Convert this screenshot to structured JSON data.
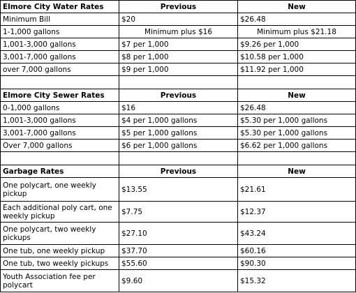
{
  "sections": [
    {
      "title": "Elmore City Water Rates",
      "columns": [
        "Previous",
        "New"
      ],
      "rows": [
        [
          "Minimum Bill",
          "$20",
          "$26.48"
        ],
        [
          "1-1,000 gallons",
          "Minimum plus $16",
          "Minimum plus $21.18"
        ],
        [
          "1,001-3,000 gallons",
          "$7 per 1,000",
          "$9.26 per 1,000"
        ],
        [
          "3,001-7,000 gallons",
          "$8 per 1,000",
          "$10.58 per 1,000"
        ],
        [
          "over 7,000 gallons",
          "$9 per 1,000",
          "$11.92 per 1,000"
        ]
      ]
    },
    {
      "title": "Elmore City Sewer Rates",
      "columns": [
        "Previous",
        "New"
      ],
      "rows": [
        [
          "0-1,000 gallons",
          "$16",
          "$26.48"
        ],
        [
          "1,001-3,000 gallons",
          "$4 per 1,000 gallons",
          "$5.30 per 1,000 gallons"
        ],
        [
          "3,001-7,000 gallons",
          "$5 per 1,000 gallons",
          "$5.30 per 1,000 gallons"
        ],
        [
          "Over 7,000 gallons",
          "$6 per 1,000 gallons",
          "$6.62 per 1,000 gallons"
        ]
      ]
    },
    {
      "title": "Garbage Rates",
      "columns": [
        "Previous",
        "New"
      ],
      "rows": [
        [
          "One polycart, one weekly pickup",
          "$13.55",
          "$21.61"
        ],
        [
          "Each additional poly cart, one weekly pickup",
          "$7.75",
          "$12.37"
        ],
        [
          "One polycart, two weekly pickups",
          "$27.10",
          "$43.24"
        ],
        [
          "One tub, one weekly pickup",
          "$37.70",
          "$60.16"
        ],
        [
          "One tub, two weekly pickups",
          "$55.60",
          "$90.30"
        ],
        [
          "Youth Association fee per polycart",
          "$9.60",
          "$15.32"
        ]
      ]
    }
  ]
}
